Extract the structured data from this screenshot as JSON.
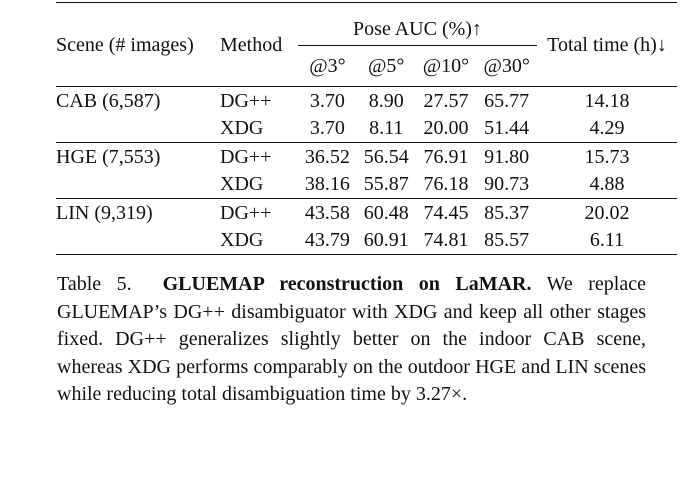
{
  "table": {
    "header": {
      "scene": "Scene (# images)",
      "method": "Method",
      "pose_auc": "Pose AUC (%)↑",
      "total_time": "Total time (h)↓",
      "thresholds": [
        "@3°",
        "@5°",
        "@10°",
        "@30°"
      ]
    },
    "groups": [
      {
        "scene": "CAB (6,587)",
        "rows": [
          {
            "method": "DG++",
            "auc": [
              "3.70",
              "8.90",
              "27.57",
              "65.77"
            ],
            "time": "14.18"
          },
          {
            "method": "XDG",
            "auc": [
              "3.70",
              "8.11",
              "20.00",
              "51.44"
            ],
            "time": "4.29"
          }
        ]
      },
      {
        "scene": "HGE (7,553)",
        "rows": [
          {
            "method": "DG++",
            "auc": [
              "36.52",
              "56.54",
              "76.91",
              "91.80"
            ],
            "time": "15.73"
          },
          {
            "method": "XDG",
            "auc": [
              "38.16",
              "55.87",
              "76.18",
              "90.73"
            ],
            "time": "4.88"
          }
        ]
      },
      {
        "scene": "LIN (9,319)",
        "rows": [
          {
            "method": "DG++",
            "auc": [
              "43.58",
              "60.48",
              "74.45",
              "85.37"
            ],
            "time": "20.02"
          },
          {
            "method": "XDG",
            "auc": [
              "43.79",
              "60.91",
              "74.81",
              "85.57"
            ],
            "time": "6.11"
          }
        ]
      }
    ]
  },
  "caption": {
    "label": "Table 5.",
    "title": "GLUEMAP reconstruction on LaMAR.",
    "body": "We replace GLUEMAP’s DG++ disambiguator with XDG and keep all other stages fixed. DG++ generalizes slightly better on the indoor CAB scene, whereas XDG performs comparably on the outdoor HGE and LIN scenes while reducing total disambiguation time by 3.27×."
  }
}
